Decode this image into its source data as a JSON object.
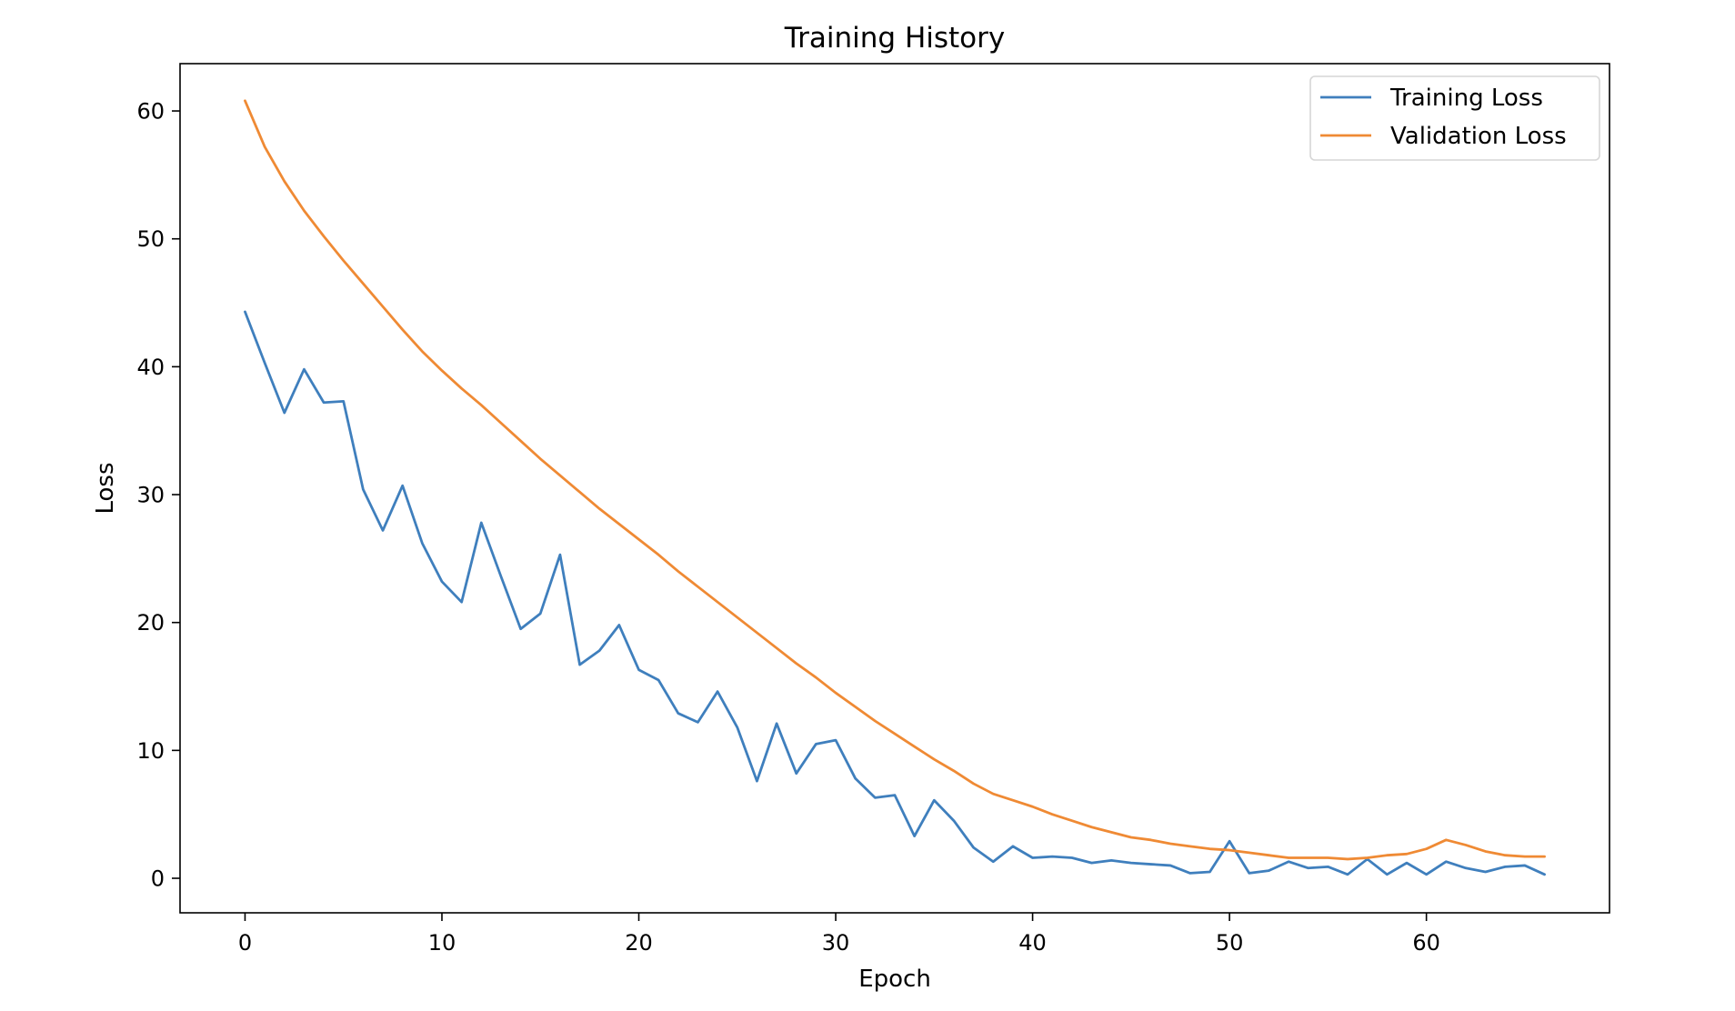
{
  "chart_data": {
    "type": "line",
    "title": "Training History",
    "xlabel": "Epoch",
    "ylabel": "Loss",
    "xlim": [
      -3.3,
      69.3
    ],
    "ylim": [
      -2.7,
      63.7
    ],
    "xticks": [
      0,
      10,
      20,
      30,
      40,
      50,
      60
    ],
    "yticks": [
      0,
      10,
      20,
      30,
      40,
      50,
      60
    ],
    "grid": false,
    "legend_position": "top-right",
    "series": [
      {
        "name": "Training Loss",
        "color": "#3f7fbd",
        "x": [
          0,
          1,
          2,
          3,
          4,
          5,
          6,
          7,
          8,
          9,
          10,
          11,
          12,
          13,
          14,
          15,
          16,
          17,
          18,
          19,
          20,
          21,
          22,
          23,
          24,
          25,
          26,
          27,
          28,
          29,
          30,
          31,
          32,
          33,
          34,
          35,
          36,
          37,
          38,
          39,
          40,
          41,
          42,
          43,
          44,
          45,
          46,
          47,
          48,
          49,
          50,
          51,
          52,
          53,
          54,
          55,
          56,
          57,
          58,
          59,
          60,
          61,
          62,
          63,
          64,
          65,
          66
        ],
        "values": [
          44.3,
          40.3,
          36.4,
          39.8,
          37.2,
          37.3,
          30.4,
          27.2,
          30.7,
          26.2,
          23.2,
          21.6,
          27.8,
          23.6,
          19.5,
          20.7,
          25.3,
          16.7,
          17.8,
          19.8,
          16.3,
          15.5,
          12.9,
          12.2,
          14.6,
          11.8,
          7.6,
          12.1,
          8.2,
          10.5,
          10.8,
          7.8,
          6.3,
          6.5,
          3.3,
          6.1,
          4.5,
          2.4,
          1.3,
          2.5,
          1.6,
          1.7,
          1.6,
          1.2,
          1.4,
          1.2,
          1.1,
          1.0,
          0.4,
          0.5,
          2.9,
          0.4,
          0.6,
          1.3,
          0.8,
          0.9,
          0.3,
          1.5,
          0.3,
          1.2,
          0.3,
          1.3,
          0.8,
          0.5,
          0.9,
          1.0,
          0.3
        ]
      },
      {
        "name": "Validation Loss",
        "color": "#ef8a34",
        "x": [
          0,
          1,
          2,
          3,
          4,
          5,
          6,
          7,
          8,
          9,
          10,
          11,
          12,
          13,
          14,
          15,
          16,
          17,
          18,
          19,
          20,
          21,
          22,
          23,
          24,
          25,
          26,
          27,
          28,
          29,
          30,
          31,
          32,
          33,
          34,
          35,
          36,
          37,
          38,
          39,
          40,
          41,
          42,
          43,
          44,
          45,
          46,
          47,
          48,
          49,
          50,
          51,
          52,
          53,
          54,
          55,
          56,
          57,
          58,
          59,
          60,
          61,
          62,
          63,
          64,
          65,
          66
        ],
        "values": [
          60.8,
          57.2,
          54.5,
          52.2,
          50.2,
          48.3,
          46.5,
          44.7,
          42.9,
          41.2,
          39.7,
          38.3,
          37.0,
          35.6,
          34.2,
          32.8,
          31.5,
          30.2,
          28.9,
          27.7,
          26.5,
          25.3,
          24.0,
          22.8,
          21.6,
          20.4,
          19.2,
          18.0,
          16.8,
          15.7,
          14.5,
          13.4,
          12.3,
          11.3,
          10.3,
          9.3,
          8.4,
          7.4,
          6.6,
          6.1,
          5.6,
          5.0,
          4.5,
          4.0,
          3.6,
          3.2,
          3.0,
          2.7,
          2.5,
          2.3,
          2.2,
          2.0,
          1.8,
          1.6,
          1.6,
          1.6,
          1.5,
          1.6,
          1.8,
          1.9,
          2.3,
          3.0,
          2.6,
          2.1,
          1.8,
          1.7,
          1.7
        ]
      }
    ]
  }
}
